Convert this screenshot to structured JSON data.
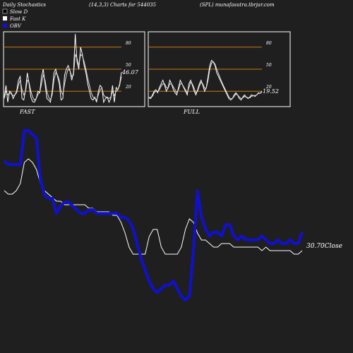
{
  "header": {
    "left": "Daily Stochastics",
    "center": "(14,3,3) Charts for 544035",
    "right": "(SPL) munafasutra.tbrjar.com"
  },
  "legend": [
    {
      "name": "Slow  D",
      "color": "#000000"
    },
    {
      "name": "Fast K",
      "color": "#ffffff"
    },
    {
      "name": "OBV",
      "color": "#1010d0"
    }
  ],
  "colors": {
    "background": "#1f1f1f",
    "panel_border": "#ffffff",
    "level_line": "#c87a14",
    "obv": "#1010d0",
    "price": "#ffffff"
  },
  "chart_data": [
    {
      "type": "line",
      "title": "FAST",
      "levels": [
        20,
        50,
        80
      ],
      "tick_labels": [
        "80",
        "50",
        "20"
      ],
      "ylim": [
        0,
        100
      ],
      "value_label": "46.07",
      "series": [
        {
          "name": "Fast K",
          "values": [
            12,
            28,
            5,
            20,
            18,
            10,
            15,
            20,
            35,
            40,
            10,
            8,
            22,
            45,
            30,
            12,
            6,
            5,
            10,
            20,
            18,
            40,
            50,
            30,
            10,
            8,
            5,
            20,
            45,
            50,
            40,
            30,
            8,
            10,
            42,
            50,
            55,
            48,
            35,
            45,
            98,
            60,
            50,
            80,
            70,
            55,
            45,
            30,
            20,
            10,
            8,
            12,
            5,
            20,
            28,
            25,
            5,
            10,
            12,
            5,
            10,
            28,
            5,
            25,
            22,
            30,
            46
          ]
        },
        {
          "values": [
            10,
            20,
            15,
            18,
            16,
            14,
            15,
            18,
            28,
            35,
            22,
            15,
            20,
            35,
            32,
            20,
            12,
            8,
            10,
            16,
            18,
            30,
            42,
            35,
            20,
            12,
            8,
            15,
            35,
            45,
            42,
            35,
            20,
            15,
            30,
            42,
            50,
            48,
            40,
            42,
            70,
            65,
            55,
            70,
            68,
            60,
            50,
            38,
            28,
            18,
            12,
            10,
            8,
            15,
            22,
            24,
            15,
            12,
            12,
            10,
            12,
            20,
            14,
            20,
            22,
            28,
            40
          ]
        }
      ]
    },
    {
      "type": "line",
      "title": "FULL",
      "levels": [
        20,
        50,
        80
      ],
      "tick_labels": [
        "80",
        "50",
        "20"
      ],
      "ylim": [
        0,
        100
      ],
      "value_label": "19.52",
      "series": [
        {
          "name": "Fast K",
          "values": [
            12,
            10,
            15,
            20,
            22,
            18,
            25,
            30,
            35,
            28,
            20,
            25,
            35,
            30,
            22,
            18,
            15,
            25,
            35,
            30,
            25,
            20,
            15,
            30,
            35,
            28,
            20,
            15,
            22,
            30,
            35,
            28,
            20,
            25,
            40,
            55,
            62,
            60,
            55,
            45,
            40,
            35,
            30,
            25,
            20,
            15,
            10,
            8,
            10,
            15,
            18,
            15,
            10,
            8,
            12,
            15,
            12,
            10,
            12,
            15,
            14,
            13,
            15,
            18,
            17,
            20
          ]
        },
        {
          "values": [
            10,
            12,
            13,
            18,
            20,
            20,
            22,
            27,
            30,
            30,
            25,
            24,
            30,
            30,
            26,
            22,
            18,
            22,
            30,
            30,
            26,
            22,
            18,
            25,
            32,
            30,
            24,
            18,
            20,
            27,
            32,
            30,
            24,
            24,
            35,
            50,
            58,
            60,
            57,
            50,
            44,
            38,
            32,
            27,
            22,
            17,
            12,
            10,
            10,
            13,
            16,
            15,
            12,
            10,
            11,
            13,
            12,
            11,
            11,
            13,
            14,
            14,
            15,
            17,
            17,
            19
          ]
        }
      ]
    },
    {
      "type": "line",
      "value_label": "30.70Close",
      "series": [
        {
          "name": "OBV",
          "values": [
            0,
            -1,
            -1,
            -1,
            -1,
            8,
            8,
            7,
            6,
            -5,
            -9,
            -10,
            -10,
            -14,
            -12,
            -11,
            -11,
            -12,
            -13,
            -14,
            -14,
            -13,
            -13,
            -14,
            -14,
            -14,
            -14,
            -14,
            -14,
            -15,
            -15,
            -16,
            -18,
            -22,
            -26,
            -29,
            -32,
            -34,
            -35,
            -34,
            -33,
            -33,
            -32,
            -34,
            -36,
            -37,
            -36,
            -24,
            -8,
            -15,
            -18,
            -20,
            -19,
            -19,
            -20,
            -17,
            -17,
            -20,
            -21,
            -20,
            -21,
            -21,
            -21,
            -21,
            -20,
            -21,
            -22,
            -22,
            -21,
            -22,
            -22,
            -21,
            -22,
            -22,
            -19
          ]
        },
        {
          "name": "Close",
          "values": [
            36,
            35,
            35,
            36,
            38,
            44,
            45,
            44,
            42,
            38,
            36,
            35,
            34,
            33,
            33,
            32,
            32,
            32,
            32,
            32,
            32,
            31,
            31,
            30,
            30,
            30,
            30,
            29,
            29,
            27,
            24,
            20,
            18,
            18,
            18,
            18,
            23,
            25,
            25,
            20,
            18,
            18,
            18,
            18,
            20,
            25,
            28,
            27,
            24,
            22,
            22,
            21,
            20,
            20,
            21,
            21,
            21,
            20,
            20,
            20,
            20,
            20,
            20,
            20,
            19,
            20,
            19,
            19,
            19,
            19,
            19,
            19,
            18,
            18,
            19
          ]
        }
      ]
    }
  ]
}
